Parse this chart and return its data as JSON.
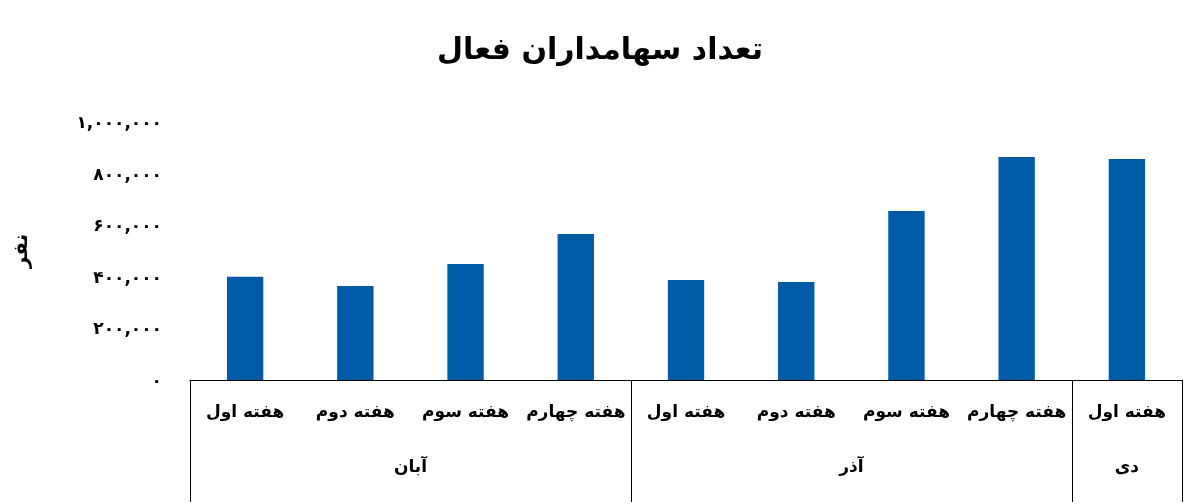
{
  "chart_data": {
    "type": "bar",
    "title": "تعداد سهامداران فعال",
    "ylabel": "نفر",
    "categories": [
      "هفته اول",
      "هفته دوم",
      "هفته سوم",
      "هفته چهارم",
      "هفته اول",
      "هفته دوم",
      "هفته سوم",
      "هفته چهارم",
      "هفته اول"
    ],
    "values": [
      400000,
      364000,
      450000,
      566000,
      388000,
      380000,
      655000,
      864000,
      857000
    ],
    "color": "#005ba6",
    "annotations": [
      "آبان",
      "آذر",
      "دی"
    ],
    "ylim": [
      0,
      1000000
    ],
    "yticks": [
      {
        "value": 0,
        "label": "۰"
      },
      {
        "value": 200000,
        "label": "۲۰۰,۰۰۰"
      },
      {
        "value": 400000,
        "label": "۴۰۰,۰۰۰"
      },
      {
        "value": 600000,
        "label": "۶۰۰,۰۰۰"
      },
      {
        "value": 800000,
        "label": "۸۰۰,۰۰۰"
      },
      {
        "value": 1000000,
        "label": "۱,۰۰۰,۰۰۰"
      }
    ]
  }
}
